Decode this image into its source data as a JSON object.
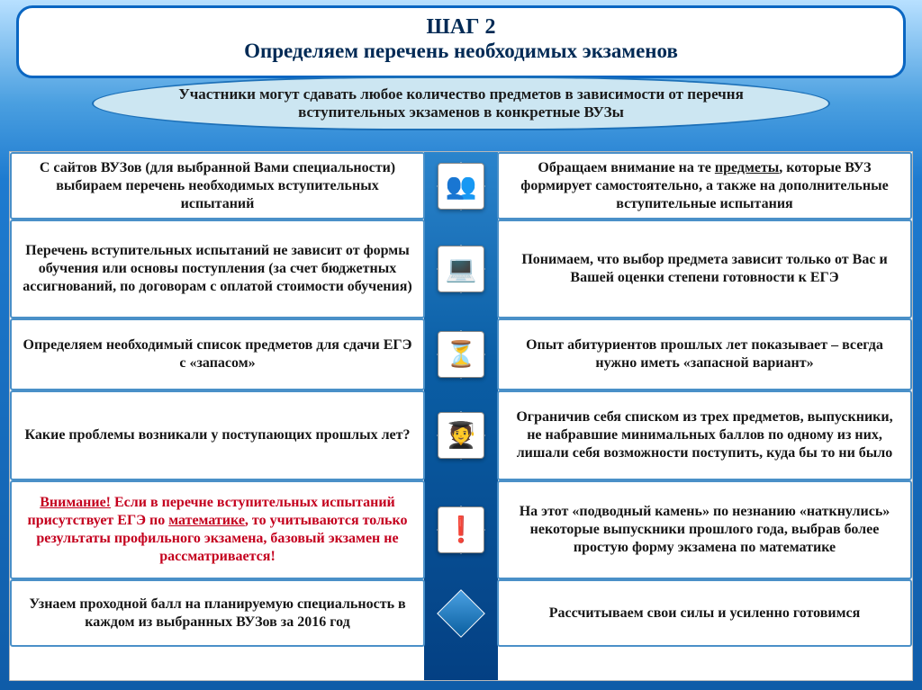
{
  "colors": {
    "bg_top": "#b8e0ff",
    "bg_bottom": "#0f5ca8",
    "header_border": "#0a66c2",
    "header_text": "#002a55",
    "callout_bg": "#cce6f2",
    "callout_border": "#1c70b8",
    "cell_border": "#4a90c8",
    "red": "#c4001e"
  },
  "header": {
    "title": "ШАГ 2",
    "subtitle": "Определяем перечень необходимых экзаменов"
  },
  "callout": "Участники могут сдавать любое количество предметов в зависимости от перечня вступительных экзаменов в конкретные ВУЗы",
  "rows": [
    {
      "left_html": "С сайтов ВУЗов (для выбранной Вами специальности) выбираем перечень необходимых вступительных  испытаний",
      "right_pre": "Обращаем внимание на те  ",
      "right_underline": "предметы",
      "right_post": ", которые ВУЗ формирует самостоятельно, а также на дополнительные вступительные испытания",
      "icon": "👥",
      "h_left": "h75",
      "h_right": "h75"
    },
    {
      "left_html": "Перечень вступительных испытаний не зависит от формы обучения или основы поступления (за счет бюджетных ассигнований, по договорам с оплатой стоимости обучения)",
      "right_html": "Понимаем, что выбор предмета зависит только от Вас и Вашей оценки степени готовности к ЕГЭ",
      "icon": "💻",
      "h_left": "h110",
      "h_right": "h110"
    },
    {
      "left_html": "Определяем необходимый список предметов для сдачи ЕГЭ с «запасом»",
      "right_html": "Опыт абитуриентов прошлых лет показывает –  всегда нужно иметь «запасной вариант»",
      "icon": "⏳",
      "h_left": "h80",
      "h_right": "h80"
    },
    {
      "left_html": "Какие проблемы возникали у поступающих прошлых лет?",
      "right_html": "Ограничив себя списком из трех предметов, выпускники, не набравшие  минимальных баллов по одному из них, лишали себя возможности поступить, куда бы то ни было",
      "icon": "🧑‍🎓",
      "h_left": "h100",
      "h_right": "h100"
    },
    {
      "left_attention": "Внимание!",
      "left_mid1": " Если в перечне вступительных испытаний присутствует ЕГЭ по ",
      "left_underline": "математике",
      "left_mid2": ", то учитываются только результаты профильного экзамена, базовый экзамен не рассматривается!",
      "right_html": "На этот «подводный камень» по незнанию «наткнулись» некоторые выпускники прошлого года, выбрав более простую форму экзамена по математике",
      "icon": "❗",
      "h_left": "h110",
      "h_right": "h110"
    },
    {
      "left_html": "Узнаем проходной балл на планируемую специальность в  каждом из выбранных ВУЗов за 2016 год",
      "right_html": "Рассчитываем свои силы и усиленно готовимся",
      "icon": "",
      "h_left": "h75",
      "h_right": "h75"
    }
  ]
}
